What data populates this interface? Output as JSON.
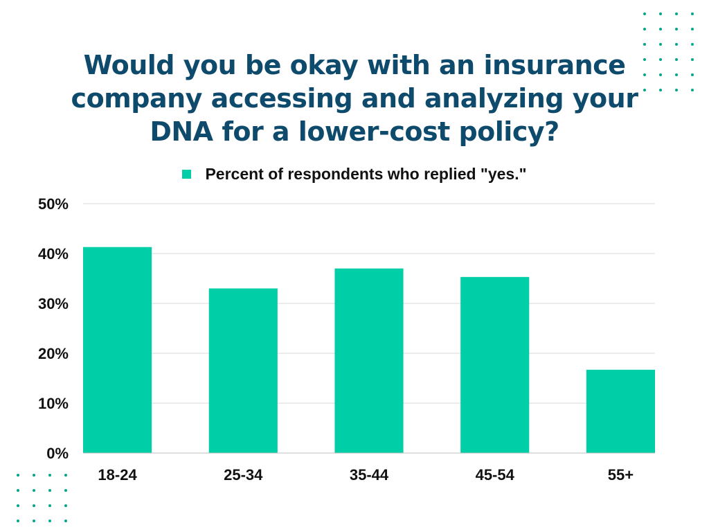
{
  "title_lines": [
    "Would you be okay with an insurance",
    "company accessing and analyzing your",
    "DNA for a lower-cost policy?"
  ],
  "colors": {
    "bar": "#00cea6",
    "title": "#0d4a6b",
    "grid": "#d9d9d9",
    "dots": "#00a88a"
  },
  "chart_data": {
    "type": "bar",
    "title": "Would you be okay with an insurance company accessing and analyzing your DNA for a lower-cost policy?",
    "categories": [
      "18-24",
      "25-34",
      "35-44",
      "45-54",
      "55+"
    ],
    "series": [
      {
        "name": "Percent of respondents who replied \"yes.\"",
        "values": [
          41.3,
          33.0,
          37.0,
          35.3,
          16.7
        ]
      }
    ],
    "ylim": [
      0,
      50
    ],
    "yticks": [
      0,
      10,
      20,
      30,
      40,
      50
    ],
    "ytick_labels": [
      "0%",
      "10%",
      "20%",
      "30%",
      "40%",
      "50%"
    ],
    "grid": true,
    "legend_position": "top-center",
    "xlabel": "",
    "ylabel": ""
  }
}
